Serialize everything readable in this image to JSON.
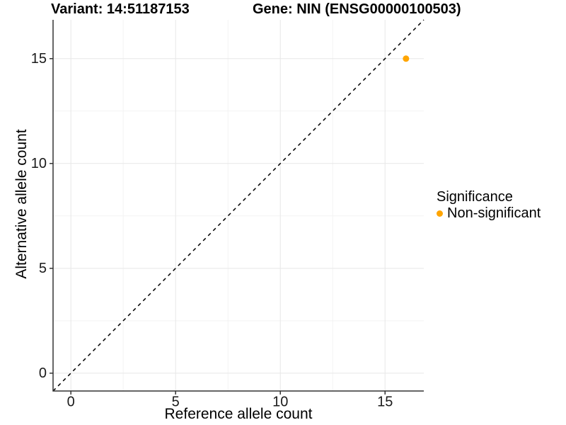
{
  "figure": {
    "background": "#FFFFFF"
  },
  "chart_data": {
    "type": "scatter",
    "title_left": "Variant: 14:51187153",
    "title_right": "Gene: NIN (ENSG00000100503)",
    "xlabel": "Reference allele count",
    "ylabel": "Alternative allele count",
    "xlim": [
      -0.85,
      16.85
    ],
    "ylim": [
      -0.85,
      16.85
    ],
    "xticks": [
      0,
      5,
      10,
      15
    ],
    "yticks": [
      0,
      5,
      10,
      15
    ],
    "minor_xticks": [
      2.5,
      7.5,
      12.5
    ],
    "minor_yticks": [
      2.5,
      7.5,
      12.5
    ],
    "grid": "major+minor",
    "reference_line": {
      "style": "dashed",
      "slope": 1,
      "intercept": 0,
      "color": "#000000"
    },
    "series": [
      {
        "name": "Non-significant",
        "color": "#FFA500",
        "points": [
          {
            "x": 16,
            "y": 15
          }
        ]
      }
    ],
    "legend": {
      "title": "Significance",
      "position": "right",
      "items": [
        {
          "label": "Non-significant",
          "color": "#FFA500"
        }
      ]
    },
    "colors": {
      "axis_line": "#333333",
      "tick_text": "#1A1A1A",
      "grid_major": "#E7E7E7",
      "grid_minor": "#F3F3F3",
      "panel_background": "#FFFFFF"
    }
  }
}
